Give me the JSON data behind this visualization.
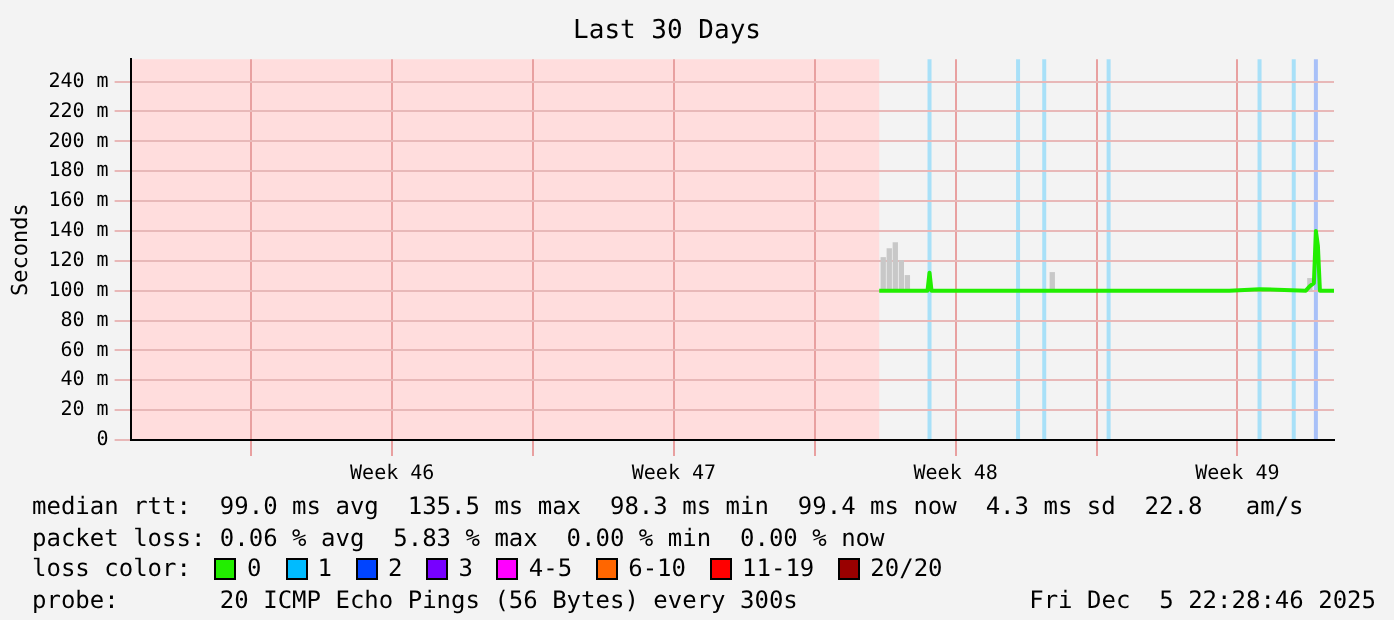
{
  "chart_data": {
    "type": "line",
    "title": "Last 30 Days",
    "ylabel": "Seconds",
    "xlim": [
      "2025-11-06T00:00",
      "2025-12-05T21:36"
    ],
    "xticks": [
      {
        "value": "2025-11-09",
        "label": null
      },
      {
        "value": "2025-11-12T12:00",
        "label": "Week 46"
      },
      {
        "value": "2025-11-16",
        "label": null
      },
      {
        "value": "2025-11-19T12:00",
        "label": "Week 47"
      },
      {
        "value": "2025-11-23",
        "label": null
      },
      {
        "value": "2025-11-26T12:00",
        "label": "Week 48"
      },
      {
        "value": "2025-11-30",
        "label": null
      },
      {
        "value": "2025-12-03T12:00",
        "label": "Week 49"
      }
    ],
    "ylim": [
      0,
      255
    ],
    "yticks": [
      0,
      {
        "value": 20,
        "label": "20 m"
      },
      {
        "value": 40,
        "label": "40 m"
      },
      {
        "value": 60,
        "label": "60 m"
      },
      {
        "value": 80,
        "label": "80 m"
      },
      {
        "value": 100,
        "label": "100 m"
      },
      {
        "value": 120,
        "label": "120 m"
      },
      {
        "value": 140,
        "label": "140 m"
      },
      {
        "value": 160,
        "label": "160 m"
      },
      {
        "value": 180,
        "label": "180 m"
      },
      {
        "value": 200,
        "label": "200 m"
      },
      {
        "value": 220,
        "label": "220 m"
      },
      {
        "value": 240,
        "label": "240 m"
      }
    ],
    "grid": true,
    "legend": "bottom",
    "legend_title": "loss color:",
    "marker": "none",
    "series": [
      {
        "name": "0",
        "color": "#22ee00",
        "x": [
          "2025-11-24T14:24",
          "2025-11-25T19:12",
          "2025-11-25T20:24",
          "2025-11-25T21:36",
          "2025-11-28T16:48",
          "2025-11-30T07:12",
          "2025-12-03T07:12",
          "2025-12-04T01:12",
          "2025-12-05T04:48",
          "2025-12-05T07:12",
          "2025-12-05T09:36",
          "2025-12-05T10:48",
          "2025-12-05T12:00",
          "2025-12-05T13:12",
          "2025-12-05T21:36"
        ],
        "values": [
          100,
          100,
          112,
          100,
          100,
          100,
          100,
          101,
          100,
          103,
          105,
          140,
          130,
          100,
          100
        ]
      },
      {
        "name": "1",
        "color": "#00bbff"
      },
      {
        "name": "2",
        "color": "#0044ff"
      },
      {
        "name": "3",
        "color": "#7700ff"
      },
      {
        "name": "4-5",
        "color": "#ff00ff"
      },
      {
        "name": "6-10",
        "color": "#ff6600"
      },
      {
        "name": "11-19",
        "color": "#ff0000"
      },
      {
        "name": "20/20",
        "color": "#990000"
      },
      {
        "type": "bar",
        "color": "#c8c8c8",
        "x": [
          "2025-11-24T16:48",
          "2025-11-24T20:24",
          "2025-11-25T00:00",
          "2025-11-25T03:36",
          "2025-11-25T07:12",
          "2025-11-28T21:36",
          "2025-12-05T07:12"
        ],
        "base": [
          100,
          100,
          100,
          100,
          100,
          100,
          100
        ],
        "values": [
          22,
          28,
          32,
          20,
          10,
          12,
          8
        ]
      }
    ],
    "bands": [
      {
        "axis": "x",
        "from": "2025-11-06T00:00",
        "to": "2025-11-24T14:24",
        "color": "#ffdddd"
      }
    ],
    "ref_lines": [
      {
        "axis": "x",
        "value": "2025-11-25T20:24",
        "color": "#a8e0f8"
      },
      {
        "axis": "x",
        "value": "2025-11-28T01:12",
        "color": "#a8e0f8"
      },
      {
        "axis": "x",
        "value": "2025-11-28T16:48",
        "color": "#a8e0f8"
      },
      {
        "axis": "x",
        "value": "2025-11-30T07:12",
        "color": "#a8e0f8"
      },
      {
        "axis": "x",
        "value": "2025-12-04T01:12",
        "color": "#a8e0f8"
      },
      {
        "axis": "x",
        "value": "2025-12-04T21:36",
        "color": "#a8e0f8"
      },
      {
        "axis": "x",
        "value": "2025-12-05T10:48",
        "color": "#a8c0f8"
      }
    ],
    "annotations": [
      "median rtt:  99.0 ms avg  135.5 ms max  98.3 ms min  99.4 ms now  4.3 ms sd  22.8   am/s",
      "packet loss: 0.06 % avg  5.83 % max  0.00 % min  0.00 % now",
      "probe:       20 ICMP Echo Pings (56 Bytes) every 300s",
      "Fri Dec  5 22:28:46 2025"
    ]
  }
}
